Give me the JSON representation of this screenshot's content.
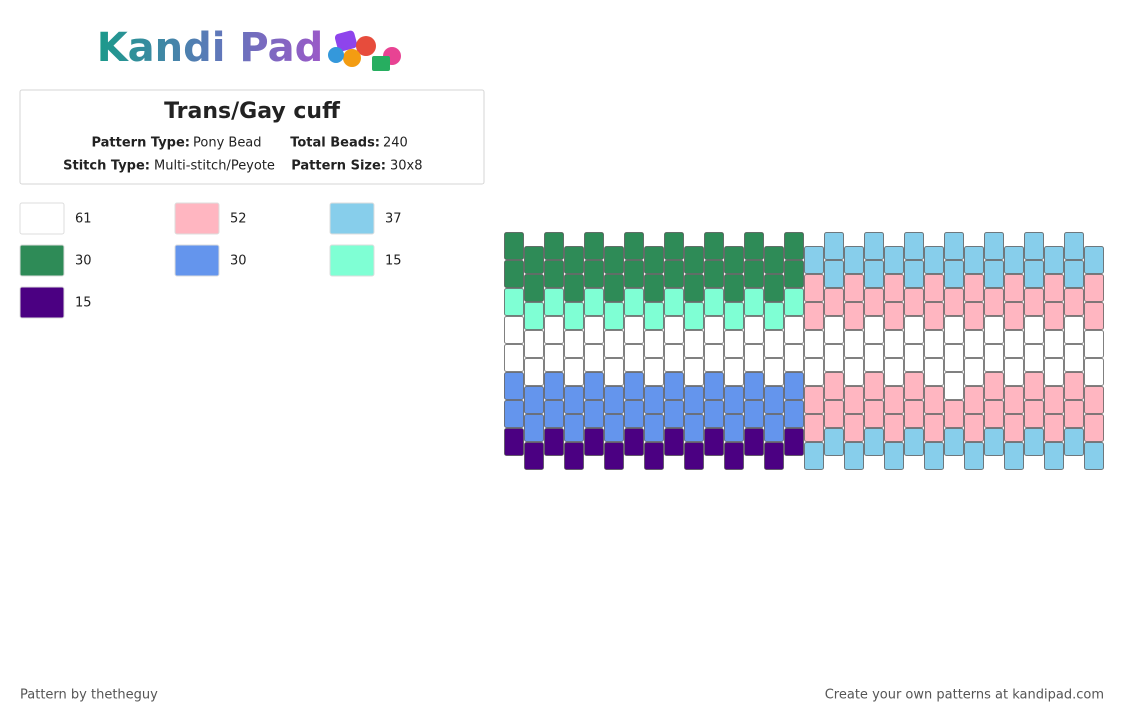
{
  "header": {
    "logo": "Kandi Pad",
    "title": "Trans/Gay cuff",
    "pattern_type_label": "Pattern Type:",
    "pattern_type": "Pony Bead",
    "total_beads_label": "Total Beads:",
    "total_beads": 240,
    "stitch_type_label": "Stitch Type:",
    "stitch_type": "Multi-stitch/Peyote",
    "pattern_size_label": "Pattern Size:",
    "pattern_size": "30x8"
  },
  "legend": [
    {
      "color": "#ffffff",
      "count": 61
    },
    {
      "color": "#ffb6c1",
      "count": 52
    },
    {
      "color": "#87ceeb",
      "count": 37
    },
    {
      "color": "#2e8b57",
      "count": 30
    },
    {
      "color": "#6495ed",
      "count": 30
    },
    {
      "color": "#7fffd4",
      "count": 15
    },
    {
      "color": "#4b0082",
      "count": 15
    }
  ],
  "pattern": {
    "columns": [
      [
        "#2e8b57",
        "#2e8b57",
        "#7fffd4",
        "#ffffff",
        "#ffffff",
        "#6495ed",
        "#6495ed",
        "#4b0082"
      ],
      [
        "#2e8b57",
        "#2e8b57",
        "#7fffd4",
        "#ffffff",
        "#ffffff",
        "#6495ed",
        "#6495ed",
        "#4b0082"
      ],
      [
        "#2e8b57",
        "#2e8b57",
        "#7fffd4",
        "#ffffff",
        "#ffffff",
        "#6495ed",
        "#6495ed",
        "#4b0082"
      ],
      [
        "#2e8b57",
        "#2e8b57",
        "#7fffd4",
        "#ffffff",
        "#ffffff",
        "#6495ed",
        "#6495ed",
        "#4b0082"
      ],
      [
        "#2e8b57",
        "#2e8b57",
        "#7fffd4",
        "#ffffff",
        "#ffffff",
        "#6495ed",
        "#6495ed",
        "#4b0082"
      ],
      [
        "#2e8b57",
        "#2e8b57",
        "#7fffd4",
        "#ffffff",
        "#ffffff",
        "#6495ed",
        "#6495ed",
        "#4b0082"
      ],
      [
        "#2e8b57",
        "#2e8b57",
        "#7fffd4",
        "#ffffff",
        "#ffffff",
        "#6495ed",
        "#6495ed",
        "#4b0082"
      ],
      [
        "#2e8b57",
        "#2e8b57",
        "#7fffd4",
        "#ffffff",
        "#ffffff",
        "#6495ed",
        "#6495ed",
        "#4b0082"
      ],
      [
        "#2e8b57",
        "#2e8b57",
        "#7fffd4",
        "#ffffff",
        "#ffffff",
        "#6495ed",
        "#6495ed",
        "#4b0082"
      ],
      [
        "#2e8b57",
        "#2e8b57",
        "#7fffd4",
        "#ffffff",
        "#ffffff",
        "#6495ed",
        "#6495ed",
        "#4b0082"
      ],
      [
        "#2e8b57",
        "#2e8b57",
        "#7fffd4",
        "#ffffff",
        "#ffffff",
        "#6495ed",
        "#6495ed",
        "#4b0082"
      ],
      [
        "#2e8b57",
        "#2e8b57",
        "#7fffd4",
        "#ffffff",
        "#ffffff",
        "#6495ed",
        "#6495ed",
        "#4b0082"
      ],
      [
        "#2e8b57",
        "#2e8b57",
        "#7fffd4",
        "#ffffff",
        "#ffffff",
        "#6495ed",
        "#6495ed",
        "#4b0082"
      ],
      [
        "#2e8b57",
        "#2e8b57",
        "#7fffd4",
        "#ffffff",
        "#ffffff",
        "#6495ed",
        "#6495ed",
        "#4b0082"
      ],
      [
        "#2e8b57",
        "#2e8b57",
        "#7fffd4",
        "#ffffff",
        "#ffffff",
        "#6495ed",
        "#6495ed",
        "#4b0082"
      ],
      [
        "#87ceeb",
        "#ffb6c1",
        "#ffb6c1",
        "#ffffff",
        "#ffffff",
        "#ffb6c1",
        "#ffb6c1",
        "#87ceeb"
      ],
      [
        "#87ceeb",
        "#87ceeb",
        "#ffb6c1",
        "#ffffff",
        "#ffffff",
        "#ffb6c1",
        "#ffb6c1",
        "#87ceeb"
      ],
      [
        "#87ceeb",
        "#ffb6c1",
        "#ffb6c1",
        "#ffffff",
        "#ffffff",
        "#ffb6c1",
        "#ffb6c1",
        "#87ceeb"
      ],
      [
        "#87ceeb",
        "#87ceeb",
        "#ffb6c1",
        "#ffffff",
        "#ffffff",
        "#ffb6c1",
        "#ffb6c1",
        "#87ceeb"
      ],
      [
        "#87ceeb",
        "#ffb6c1",
        "#ffb6c1",
        "#ffffff",
        "#ffffff",
        "#ffb6c1",
        "#ffb6c1",
        "#87ceeb"
      ],
      [
        "#87ceeb",
        "#87ceeb",
        "#ffb6c1",
        "#ffffff",
        "#ffffff",
        "#ffb6c1",
        "#ffb6c1",
        "#87ceeb"
      ],
      [
        "#87ceeb",
        "#ffb6c1",
        "#ffb6c1",
        "#ffffff",
        "#ffffff",
        "#ffb6c1",
        "#ffb6c1",
        "#87ceeb"
      ],
      [
        "#87ceeb",
        "#87ceeb",
        "#ffb6c1",
        "#ffffff",
        "#ffffff",
        "#ffffff",
        "#ffb6c1",
        "#87ceeb"
      ],
      [
        "#87ceeb",
        "#ffb6c1",
        "#ffb6c1",
        "#ffffff",
        "#ffffff",
        "#ffb6c1",
        "#ffb6c1",
        "#87ceeb"
      ],
      [
        "#87ceeb",
        "#87ceeb",
        "#ffb6c1",
        "#ffffff",
        "#ffffff",
        "#ffb6c1",
        "#ffb6c1",
        "#87ceeb"
      ],
      [
        "#87ceeb",
        "#ffb6c1",
        "#ffb6c1",
        "#ffffff",
        "#ffffff",
        "#ffb6c1",
        "#ffb6c1",
        "#87ceeb"
      ],
      [
        "#87ceeb",
        "#87ceeb",
        "#ffb6c1",
        "#ffffff",
        "#ffffff",
        "#ffb6c1",
        "#ffb6c1",
        "#87ceeb"
      ],
      [
        "#87ceeb",
        "#ffb6c1",
        "#ffb6c1",
        "#ffffff",
        "#ffffff",
        "#ffb6c1",
        "#ffb6c1",
        "#87ceeb"
      ],
      [
        "#87ceeb",
        "#87ceeb",
        "#ffb6c1",
        "#ffffff",
        "#ffffff",
        "#ffb6c1",
        "#ffb6c1",
        "#87ceeb"
      ],
      [
        "#87ceeb",
        "#ffb6c1",
        "#ffb6c1",
        "#ffffff",
        "#ffffff",
        "#ffb6c1",
        "#ffb6c1",
        "#87ceeb"
      ]
    ]
  },
  "footer": {
    "credit": "Pattern by thetheguy",
    "promo": "Create your own patterns at kandipad.com"
  }
}
